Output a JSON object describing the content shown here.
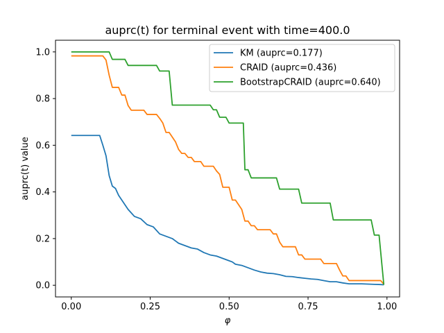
{
  "chart_data": {
    "type": "line",
    "title": "auprc(t) for terminal event with time=400.0",
    "xlabel": "φ",
    "ylabel": "auprc(t) value",
    "xlim": [
      -0.05,
      1.04
    ],
    "ylim": [
      -0.05,
      1.05
    ],
    "xticks": [
      {
        "value": 0.0,
        "label": "0.00"
      },
      {
        "value": 0.25,
        "label": "0.25"
      },
      {
        "value": 0.5,
        "label": "0.50"
      },
      {
        "value": 0.75,
        "label": "0.75"
      },
      {
        "value": 1.0,
        "label": "1.00"
      }
    ],
    "yticks": [
      {
        "value": 0.0,
        "label": "0.0"
      },
      {
        "value": 0.2,
        "label": "0.2"
      },
      {
        "value": 0.4,
        "label": "0.4"
      },
      {
        "value": 0.6,
        "label": "0.6"
      },
      {
        "value": 0.8,
        "label": "0.8"
      },
      {
        "value": 1.0,
        "label": "1.0"
      }
    ],
    "grid": false,
    "legend_position": "top-right",
    "series": [
      {
        "name": "KM (auprc=0.177)",
        "color": "#1f77b4",
        "points": [
          [
            0.0,
            0.642
          ],
          [
            0.09,
            0.642
          ],
          [
            0.1,
            0.6
          ],
          [
            0.11,
            0.555
          ],
          [
            0.12,
            0.47
          ],
          [
            0.13,
            0.425
          ],
          [
            0.14,
            0.415
          ],
          [
            0.15,
            0.385
          ],
          [
            0.16,
            0.365
          ],
          [
            0.17,
            0.345
          ],
          [
            0.18,
            0.325
          ],
          [
            0.19,
            0.31
          ],
          [
            0.2,
            0.295
          ],
          [
            0.22,
            0.285
          ],
          [
            0.24,
            0.26
          ],
          [
            0.26,
            0.25
          ],
          [
            0.28,
            0.22
          ],
          [
            0.3,
            0.21
          ],
          [
            0.32,
            0.2
          ],
          [
            0.34,
            0.18
          ],
          [
            0.36,
            0.17
          ],
          [
            0.38,
            0.16
          ],
          [
            0.4,
            0.155
          ],
          [
            0.42,
            0.14
          ],
          [
            0.44,
            0.13
          ],
          [
            0.46,
            0.125
          ],
          [
            0.48,
            0.115
          ],
          [
            0.5,
            0.105
          ],
          [
            0.51,
            0.1
          ],
          [
            0.52,
            0.09
          ],
          [
            0.54,
            0.085
          ],
          [
            0.56,
            0.075
          ],
          [
            0.58,
            0.065
          ],
          [
            0.6,
            0.057
          ],
          [
            0.62,
            0.052
          ],
          [
            0.64,
            0.05
          ],
          [
            0.66,
            0.045
          ],
          [
            0.68,
            0.038
          ],
          [
            0.7,
            0.037
          ],
          [
            0.72,
            0.033
          ],
          [
            0.74,
            0.03
          ],
          [
            0.76,
            0.027
          ],
          [
            0.78,
            0.025
          ],
          [
            0.8,
            0.02
          ],
          [
            0.82,
            0.015
          ],
          [
            0.84,
            0.015
          ],
          [
            0.86,
            0.01
          ],
          [
            0.88,
            0.006
          ],
          [
            0.92,
            0.006
          ],
          [
            0.94,
            0.005
          ],
          [
            0.96,
            0.004
          ],
          [
            0.98,
            0.003
          ],
          [
            0.99,
            0.002
          ]
        ]
      },
      {
        "name": "CRAID (auprc=0.436)",
        "color": "#ff7f0e",
        "points": [
          [
            0.0,
            0.983
          ],
          [
            0.1,
            0.983
          ],
          [
            0.11,
            0.965
          ],
          [
            0.12,
            0.9
          ],
          [
            0.13,
            0.848
          ],
          [
            0.15,
            0.848
          ],
          [
            0.16,
            0.815
          ],
          [
            0.17,
            0.815
          ],
          [
            0.18,
            0.77
          ],
          [
            0.19,
            0.75
          ],
          [
            0.23,
            0.75
          ],
          [
            0.24,
            0.732
          ],
          [
            0.27,
            0.732
          ],
          [
            0.28,
            0.715
          ],
          [
            0.29,
            0.695
          ],
          [
            0.3,
            0.655
          ],
          [
            0.31,
            0.655
          ],
          [
            0.32,
            0.635
          ],
          [
            0.33,
            0.615
          ],
          [
            0.34,
            0.582
          ],
          [
            0.35,
            0.565
          ],
          [
            0.36,
            0.565
          ],
          [
            0.37,
            0.548
          ],
          [
            0.38,
            0.548
          ],
          [
            0.39,
            0.53
          ],
          [
            0.41,
            0.53
          ],
          [
            0.42,
            0.51
          ],
          [
            0.45,
            0.51
          ],
          [
            0.46,
            0.49
          ],
          [
            0.47,
            0.475
          ],
          [
            0.48,
            0.42
          ],
          [
            0.5,
            0.42
          ],
          [
            0.51,
            0.365
          ],
          [
            0.52,
            0.365
          ],
          [
            0.53,
            0.345
          ],
          [
            0.54,
            0.325
          ],
          [
            0.55,
            0.275
          ],
          [
            0.56,
            0.275
          ],
          [
            0.57,
            0.255
          ],
          [
            0.58,
            0.255
          ],
          [
            0.59,
            0.238
          ],
          [
            0.63,
            0.238
          ],
          [
            0.64,
            0.22
          ],
          [
            0.65,
            0.22
          ],
          [
            0.66,
            0.185
          ],
          [
            0.67,
            0.165
          ],
          [
            0.71,
            0.165
          ],
          [
            0.72,
            0.13
          ],
          [
            0.73,
            0.13
          ],
          [
            0.74,
            0.112
          ],
          [
            0.79,
            0.112
          ],
          [
            0.8,
            0.093
          ],
          [
            0.84,
            0.093
          ],
          [
            0.85,
            0.065
          ],
          [
            0.86,
            0.04
          ],
          [
            0.87,
            0.04
          ],
          [
            0.88,
            0.02
          ],
          [
            0.98,
            0.02
          ],
          [
            0.99,
            0.005
          ]
        ]
      },
      {
        "name": "BootstrapCRAID (auprc=0.640)",
        "color": "#2ca02c",
        "points": [
          [
            0.0,
            1.0
          ],
          [
            0.12,
            1.0
          ],
          [
            0.13,
            0.968
          ],
          [
            0.17,
            0.968
          ],
          [
            0.18,
            0.942
          ],
          [
            0.27,
            0.942
          ],
          [
            0.28,
            0.918
          ],
          [
            0.31,
            0.918
          ],
          [
            0.32,
            0.772
          ],
          [
            0.44,
            0.772
          ],
          [
            0.45,
            0.752
          ],
          [
            0.46,
            0.752
          ],
          [
            0.47,
            0.72
          ],
          [
            0.49,
            0.72
          ],
          [
            0.5,
            0.695
          ],
          [
            0.53,
            0.695
          ],
          [
            0.545,
            0.695
          ],
          [
            0.55,
            0.495
          ],
          [
            0.56,
            0.495
          ],
          [
            0.57,
            0.46
          ],
          [
            0.65,
            0.46
          ],
          [
            0.66,
            0.412
          ],
          [
            0.72,
            0.412
          ],
          [
            0.73,
            0.352
          ],
          [
            0.82,
            0.352
          ],
          [
            0.83,
            0.28
          ],
          [
            0.95,
            0.28
          ],
          [
            0.96,
            0.215
          ],
          [
            0.975,
            0.215
          ],
          [
            0.99,
            0.002
          ]
        ]
      }
    ]
  }
}
